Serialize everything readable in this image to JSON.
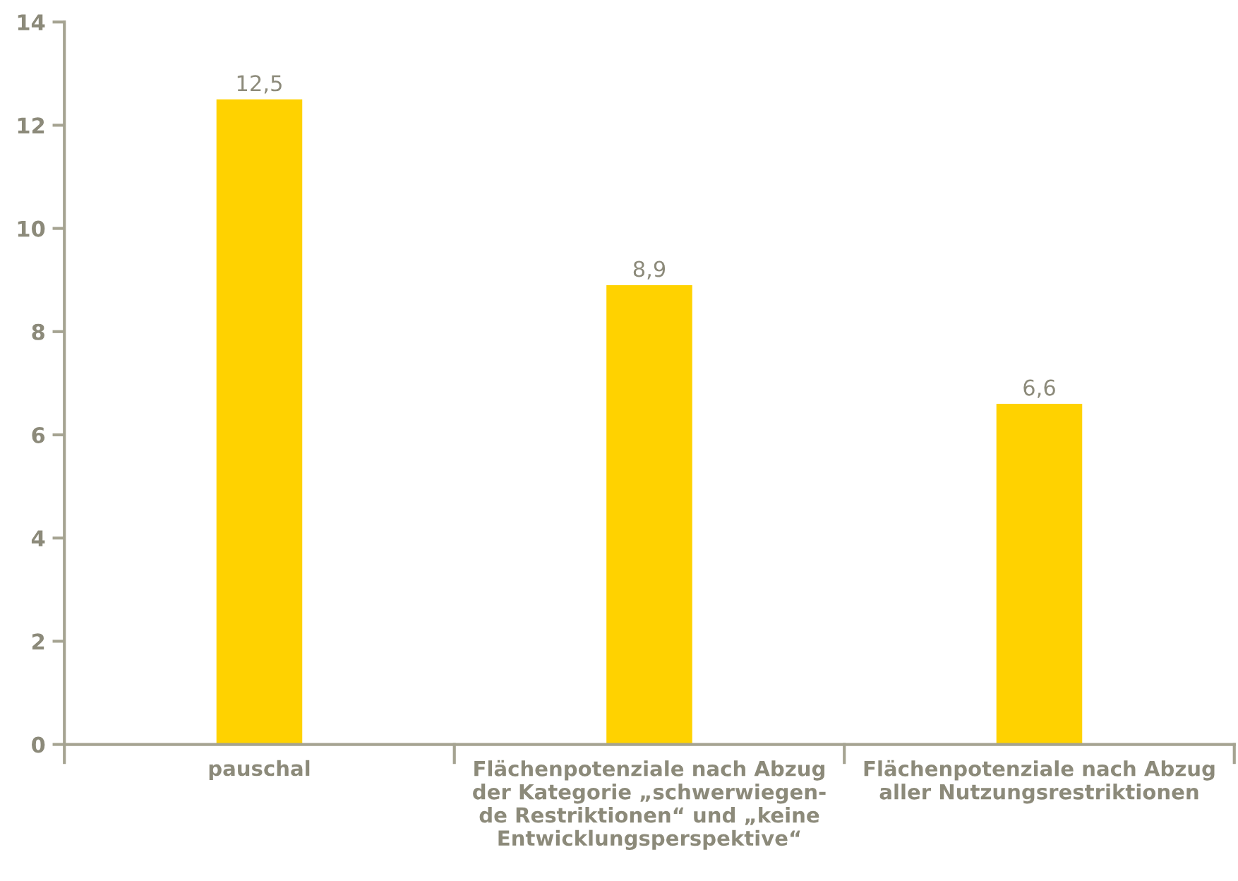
{
  "chart_data": {
    "type": "bar",
    "categories": [
      "pauschal",
      "Flächenpotenziale nach Abzug\nder Kategorie „schwerwiegen-\nde Restriktionen“ und „keine\nEntwicklungsperspektive“",
      "Flächenpotenziale nach Abzug\naller Nutzungsrestriktionen"
    ],
    "values": [
      12.5,
      8.9,
      6.6
    ],
    "value_labels": [
      "12,5",
      "8,9",
      "6,6"
    ],
    "color": "#ffd200",
    "ylim": [
      0,
      14
    ],
    "yticks": [
      0,
      2,
      4,
      6,
      8,
      10,
      12,
      14
    ],
    "grid": false,
    "legend": false
  }
}
